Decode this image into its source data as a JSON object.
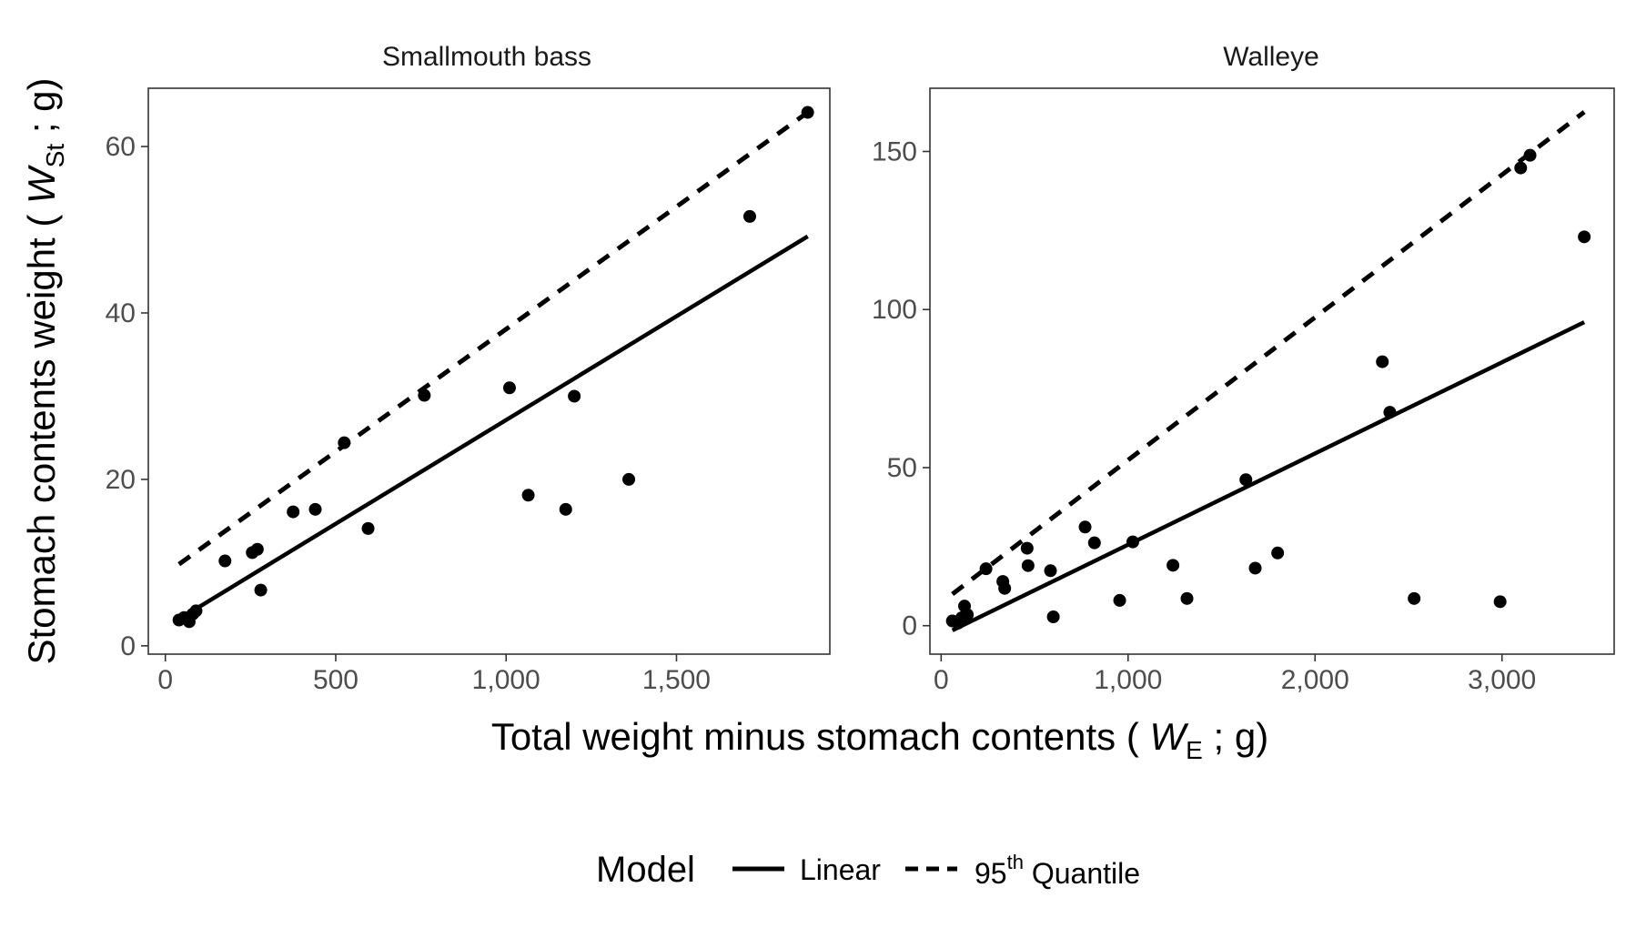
{
  "chart_data": [
    {
      "type": "scatter",
      "title": "Smallmouth bass",
      "xlim": [
        -50,
        1950
      ],
      "ylim": [
        -1,
        67
      ],
      "x_ticks": [
        0,
        500,
        1000,
        1500
      ],
      "x_tick_labels": [
        "0",
        "500",
        "1,000",
        "1,500"
      ],
      "y_ticks": [
        0,
        20,
        40,
        60
      ],
      "y_tick_labels": [
        "0",
        "20",
        "40",
        "60"
      ],
      "points": [
        {
          "x": 40,
          "y": 3.1
        },
        {
          "x": 55,
          "y": 3.4
        },
        {
          "x": 70,
          "y": 2.9
        },
        {
          "x": 80,
          "y": 3.8
        },
        {
          "x": 90,
          "y": 4.2
        },
        {
          "x": 175,
          "y": 10.2
        },
        {
          "x": 255,
          "y": 11.2
        },
        {
          "x": 270,
          "y": 11.6
        },
        {
          "x": 280,
          "y": 6.7
        },
        {
          "x": 375,
          "y": 16.1
        },
        {
          "x": 440,
          "y": 16.4
        },
        {
          "x": 525,
          "y": 24.4
        },
        {
          "x": 595,
          "y": 14.1
        },
        {
          "x": 760,
          "y": 30.1
        },
        {
          "x": 1010,
          "y": 31.0
        },
        {
          "x": 1065,
          "y": 18.1
        },
        {
          "x": 1175,
          "y": 16.4
        },
        {
          "x": 1200,
          "y": 30.0
        },
        {
          "x": 1360,
          "y": 20.0
        },
        {
          "x": 1715,
          "y": 51.6
        },
        {
          "x": 1885,
          "y": 64.1
        }
      ],
      "series": [
        {
          "name": "Linear",
          "style": "solid",
          "x": [
            40,
            1885
          ],
          "y": [
            3.2,
            49.2
          ]
        },
        {
          "name": "95th Quantile",
          "style": "dashed",
          "x": [
            40,
            1885
          ],
          "y": [
            9.8,
            64.1
          ]
        }
      ]
    },
    {
      "type": "scatter",
      "title": "Walleye",
      "xlim": [
        -60,
        3600
      ],
      "ylim": [
        -9,
        170
      ],
      "x_ticks": [
        0,
        1000,
        2000,
        3000
      ],
      "x_tick_labels": [
        "0",
        "1,000",
        "2,000",
        "3,000"
      ],
      "y_ticks": [
        0,
        50,
        100,
        150
      ],
      "y_tick_labels": [
        "0",
        "50",
        "100",
        "150"
      ],
      "points": [
        {
          "x": 60,
          "y": 1.5
        },
        {
          "x": 90,
          "y": 0.8
        },
        {
          "x": 110,
          "y": 2.5
        },
        {
          "x": 125,
          "y": 6.2
        },
        {
          "x": 140,
          "y": 3.5
        },
        {
          "x": 240,
          "y": 18.0
        },
        {
          "x": 330,
          "y": 14.0
        },
        {
          "x": 340,
          "y": 11.8
        },
        {
          "x": 460,
          "y": 24.5
        },
        {
          "x": 465,
          "y": 19.0
        },
        {
          "x": 585,
          "y": 17.4
        },
        {
          "x": 600,
          "y": 2.8
        },
        {
          "x": 770,
          "y": 31.2
        },
        {
          "x": 820,
          "y": 26.2
        },
        {
          "x": 955,
          "y": 8.0
        },
        {
          "x": 1025,
          "y": 26.5
        },
        {
          "x": 1240,
          "y": 19.1
        },
        {
          "x": 1315,
          "y": 8.6
        },
        {
          "x": 1630,
          "y": 46.2
        },
        {
          "x": 1680,
          "y": 18.2
        },
        {
          "x": 1800,
          "y": 23.0
        },
        {
          "x": 2360,
          "y": 83.5
        },
        {
          "x": 2400,
          "y": 67.5
        },
        {
          "x": 2530,
          "y": 8.6
        },
        {
          "x": 2990,
          "y": 7.6
        },
        {
          "x": 3100,
          "y": 144.8
        },
        {
          "x": 3150,
          "y": 148.8
        },
        {
          "x": 3440,
          "y": 123.0
        }
      ],
      "series": [
        {
          "name": "Linear",
          "style": "solid",
          "x": [
            60,
            3440
          ],
          "y": [
            -1.5,
            96.0
          ]
        },
        {
          "name": "95th Quantile",
          "style": "dashed",
          "x": [
            60,
            3440
          ],
          "y": [
            10.0,
            162.5
          ]
        }
      ]
    }
  ],
  "axes": {
    "y_title_main": "Stomach contents weight ( ",
    "y_title_var": "W",
    "y_title_sub": "St",
    "y_title_end": " ; g)",
    "x_title_main": "Total weight minus stomach contents ( ",
    "x_title_var": "W",
    "x_title_sub": "E",
    "x_title_end": " ; g)"
  },
  "legend": {
    "title": "Model",
    "linear_label": "Linear",
    "quantile_prefix": "95",
    "quantile_sup": "th",
    "quantile_suffix": " Quantile"
  }
}
